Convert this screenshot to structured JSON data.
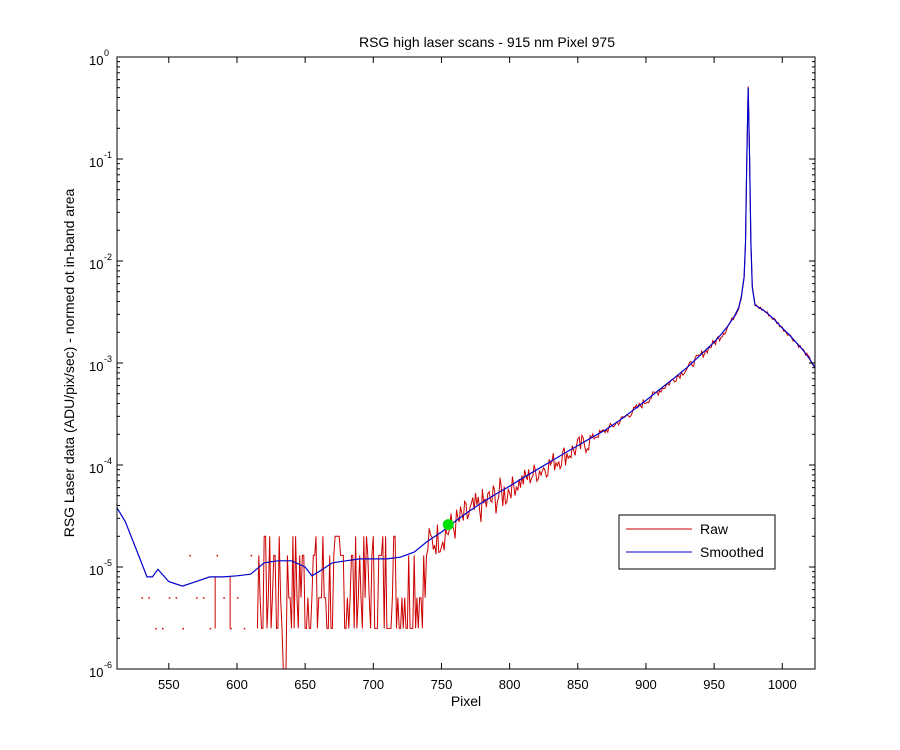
{
  "chart_data": {
    "type": "line",
    "title": "RSG high laser scans  - 915 nm    Pixel 975",
    "xlabel": "Pixel",
    "ylabel": "RSG Laser data (ADU/pix/sec) - normed ot in-band area",
    "xlim": [
      512,
      1024
    ],
    "ylim": [
      1e-06,
      1
    ],
    "yscale": "log",
    "grid": false,
    "legend_position": "lower-right",
    "x_ticks": [
      550,
      600,
      650,
      700,
      750,
      800,
      850,
      900,
      950,
      1000
    ],
    "y_ticks": [
      {
        "value": 1e-06,
        "base": "10",
        "exp": "-6"
      },
      {
        "value": 1e-05,
        "base": "10",
        "exp": "-5"
      },
      {
        "value": 0.0001,
        "base": "10",
        "exp": "-4"
      },
      {
        "value": 0.001,
        "base": "10",
        "exp": "-3"
      },
      {
        "value": 0.01,
        "base": "10",
        "exp": "-2"
      },
      {
        "value": 0.1,
        "base": "10",
        "exp": "-1"
      },
      {
        "value": 1,
        "base": "10",
        "exp": "0"
      }
    ],
    "series": [
      {
        "name": "Raw",
        "color": "#cc0000",
        "description_points": {
          "x": [
            520,
            540,
            560,
            580,
            600,
            620,
            640,
            660,
            680,
            700,
            720,
            740,
            760,
            780,
            800,
            820,
            840,
            860,
            880,
            900,
            920,
            940,
            960,
            970,
            975,
            980,
            1000,
            1024
          ],
          "y": [
            1.3e-05,
            5e-06,
            2.5e-06,
            5e-06,
            2.5e-06,
            1.3e-05,
            1e-06,
            2.5e-06,
            1.3e-05,
            2.5e-06,
            1.3e-05,
            1.5e-05,
            2.8e-05,
            3.8e-05,
            6e-05,
            8.5e-05,
            0.00012,
            0.00017,
            0.00024,
            0.00038,
            0.00065,
            0.0012,
            0.0026,
            0.005,
            0.5,
            0.0035,
            0.0025,
            0.0009
          ]
        }
      },
      {
        "name": "Smoothed",
        "color": "#0000cc",
        "x": [
          512,
          518,
          526,
          534,
          538,
          542,
          550,
          560,
          570,
          580,
          590,
          600,
          610,
          620,
          630,
          640,
          650,
          655,
          660,
          670,
          680,
          690,
          700,
          710,
          720,
          730,
          740,
          750,
          760,
          770,
          780,
          790,
          800,
          810,
          820,
          830,
          840,
          850,
          860,
          870,
          880,
          890,
          900,
          910,
          920,
          930,
          940,
          950,
          955,
          960,
          965,
          968,
          970,
          972,
          973,
          974,
          975,
          976,
          977,
          978,
          980,
          983,
          986,
          990,
          995,
          1000,
          1005,
          1010,
          1015,
          1020,
          1024
        ],
        "y": [
          3.8e-05,
          2.8e-05,
          1.5e-05,
          8e-06,
          8e-06,
          9.5e-06,
          7.2e-06,
          6.5e-06,
          7.2e-06,
          8e-06,
          8e-06,
          8.2e-06,
          8.5e-06,
          1.1e-05,
          1.15e-05,
          1.15e-05,
          1e-05,
          8.2e-06,
          9e-06,
          1.1e-05,
          1.15e-05,
          1.2e-05,
          1.2e-05,
          1.2e-05,
          1.25e-05,
          1.4e-05,
          1.8e-05,
          2.2e-05,
          2.8e-05,
          3.5e-05,
          4.3e-05,
          5.2e-05,
          6.2e-05,
          7.5e-05,
          9e-05,
          0.000108,
          0.00013,
          0.000155,
          0.000185,
          0.00022,
          0.00027,
          0.00034,
          0.00043,
          0.00055,
          0.0007,
          0.0009,
          0.0012,
          0.0016,
          0.0019,
          0.0023,
          0.0029,
          0.0035,
          0.0045,
          0.007,
          0.015,
          0.1,
          0.5,
          0.1,
          0.015,
          0.0055,
          0.0037,
          0.0035,
          0.0033,
          0.003,
          0.0026,
          0.0022,
          0.0019,
          0.0016,
          0.00135,
          0.0011,
          0.0009
        ]
      }
    ],
    "marker": {
      "x": 755,
      "y": 2.6e-05,
      "color": "#00e000"
    }
  }
}
